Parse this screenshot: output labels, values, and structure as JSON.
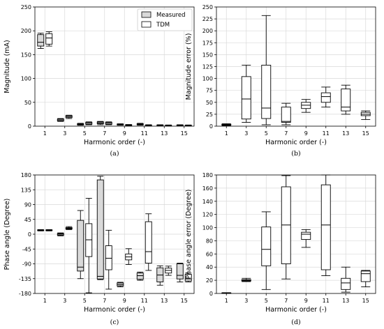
{
  "legend": {
    "measured": "Measured",
    "tdm": "TDM"
  },
  "colors": {
    "measured_fill": "#d9d9d9",
    "tdm_fill": "#ffffff",
    "stroke": "#000000",
    "grid": "#d9d9d9"
  },
  "chart_data": [
    {
      "id": "a",
      "type": "box",
      "caption": "(a)",
      "xlabel": "Harmonic order (-)",
      "ylabel": "Magnitude (mA)",
      "ylim": [
        0,
        250
      ],
      "yticks": [
        0,
        50,
        100,
        150,
        200,
        250
      ],
      "categories": [
        "1",
        "3",
        "5",
        "7",
        "9",
        "11",
        "13",
        "15"
      ],
      "grid": true,
      "legend_position": "top-right",
      "series": [
        {
          "name": "Measured",
          "boxes": [
            [
              163,
              168,
              176,
              192,
              195
            ],
            [
              10,
              11,
              13,
              15,
              16
            ],
            [
              2,
              3,
              4,
              5,
              6
            ],
            [
              3,
              5,
              7,
              9,
              10
            ],
            [
              2,
              2.5,
              3.5,
              4.5,
              5
            ],
            [
              2,
              3,
              4,
              5,
              6
            ],
            [
              1,
              1.5,
              2,
              2.5,
              3
            ],
            [
              1,
              1.5,
              2,
              2.5,
              3
            ]
          ]
        },
        {
          "name": "TDM",
          "boxes": [
            [
              168,
              172,
              185,
              194,
              198
            ],
            [
              16,
              18,
              20,
              22,
              23
            ],
            [
              3,
              4,
              6,
              8,
              9
            ],
            [
              3,
              4,
              6,
              8,
              9
            ],
            [
              1,
              1.5,
              2.5,
              3,
              3.5
            ],
            [
              1,
              1.5,
              2,
              2.5,
              3
            ],
            [
              0.5,
              1,
              1.5,
              2,
              2.5
            ],
            [
              0.5,
              1,
              1.5,
              2,
              2.5
            ]
          ]
        }
      ]
    },
    {
      "id": "b",
      "type": "box",
      "caption": "(b)",
      "xlabel": "Harmonic order (-)",
      "ylabel": "Magnitude error (%)",
      "ylim": [
        0,
        250
      ],
      "yticks": [
        0,
        25,
        50,
        75,
        100,
        125,
        150,
        175,
        200,
        225,
        250
      ],
      "categories": [
        "1",
        "3",
        "5",
        "7",
        "9",
        "11",
        "13",
        "15"
      ],
      "grid": true,
      "series": [
        {
          "name": "error",
          "boxes": [
            [
              1,
              2,
              3,
              4,
              5
            ],
            [
              8,
              15,
              57,
              104,
              128
            ],
            [
              3,
              16,
              38,
              128,
              232
            ],
            [
              3,
              8,
              10,
              40,
              48
            ],
            [
              29,
              37,
              44,
              50,
              56
            ],
            [
              40,
              50,
              62,
              70,
              82
            ],
            [
              25,
              32,
              40,
              78,
              86
            ],
            [
              14,
              22,
              25,
              29,
              32
            ]
          ]
        }
      ]
    },
    {
      "id": "c",
      "type": "box",
      "caption": "(c)",
      "xlabel": "Harmonic order (-)",
      "ylabel": "Phase angle (Degree)",
      "ylim": [
        -180,
        180
      ],
      "yticks": [
        -180,
        -135,
        -90,
        -45,
        0,
        45,
        90,
        135,
        180
      ],
      "categories": [
        "1",
        "3",
        "5",
        "7",
        "9",
        "11",
        "13",
        "15"
      ],
      "grid": true,
      "series": [
        {
          "name": "Measured",
          "boxes": [
            [
              10,
              11,
              12,
              13,
              14
            ],
            [
              -5,
              -3,
              0,
              2,
              4
            ],
            [
              -135,
              -112,
              -100,
              42,
              72
            ],
            [
              -138,
              -136,
              -128,
              165,
              176
            ],
            [
              -160,
              -157,
              -153,
              -148,
              -146
            ],
            [
              -140,
              -137,
              -126,
              -118,
              -115
            ],
            [
              -155,
              -145,
              -124,
              -102,
              -96
            ],
            [
              -145,
              -136,
              -125,
              -90,
              -88
            ]
          ]
        },
        {
          "name": "TDM",
          "boxes": [
            [
              10,
              11,
              12,
              13,
              14
            ],
            [
              14,
              16,
              18,
              20,
              23
            ],
            [
              -178,
              -68,
              -17,
              32,
              109
            ],
            [
              -167,
              -108,
              -73,
              -35,
              12
            ],
            [
              -92,
              -78,
              -69,
              -60,
              -44
            ],
            [
              -110,
              -88,
              -53,
              38,
              62
            ],
            [
              -125,
              -118,
              -110,
              -103,
              -97
            ],
            [
              -145,
              -142,
              -136,
              -122,
              -118
            ]
          ]
        }
      ]
    },
    {
      "id": "d",
      "type": "box",
      "caption": "(d)",
      "xlabel": "Harmonic order (-)",
      "ylabel": "Phase angle error (Degree)",
      "ylim": [
        0,
        180
      ],
      "yticks": [
        0,
        20,
        40,
        60,
        80,
        100,
        120,
        140,
        160,
        180
      ],
      "categories": [
        "1",
        "3",
        "5",
        "7",
        "9",
        "11",
        "13",
        "15"
      ],
      "grid": true,
      "series": [
        {
          "name": "error",
          "boxes": [
            [
              0,
              0.3,
              0.6,
              0.9,
              1.2
            ],
            [
              18,
              19,
              20,
              21,
              23
            ],
            [
              6,
              42,
              67,
              101,
              124
            ],
            [
              22,
              45,
              104,
              162,
              179
            ],
            [
              70,
              82,
              90,
              93,
              97
            ],
            [
              27,
              36,
              104,
              165,
              180
            ],
            [
              2,
              6,
              16,
              23,
              40
            ],
            [
              10,
              18,
              30,
              34,
              35
            ]
          ]
        }
      ]
    }
  ]
}
